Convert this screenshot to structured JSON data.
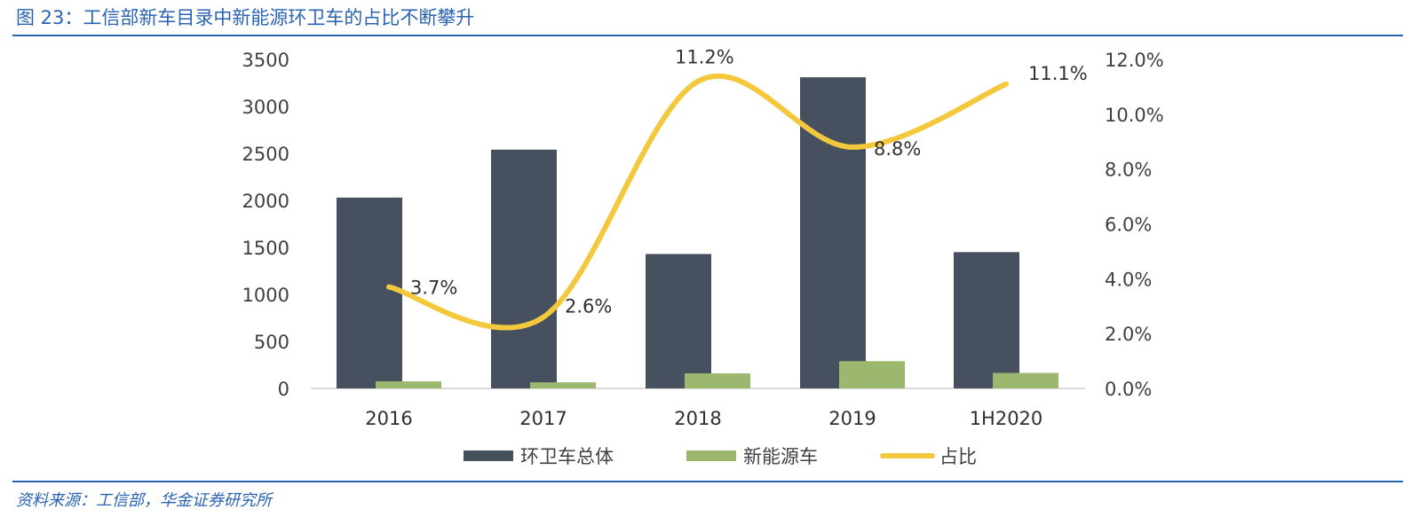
{
  "header": {
    "title": "图 23：工信部新车目录中新能源环卫车的占比不断攀升"
  },
  "footer": {
    "source": "资料来源：工信部，华金证券研究所"
  },
  "colors": {
    "total": "#46505e",
    "nev": "#9cb86f",
    "ratio": "#f3c83c",
    "accent": "#2a64b0"
  },
  "chart_data": {
    "type": "bar",
    "title": "工信部新车目录中新能源环卫车的占比不断攀升",
    "categories": [
      "2016",
      "2017",
      "2018",
      "2019",
      "1H2020"
    ],
    "series": [
      {
        "name": "环卫车总体",
        "type": "bar",
        "axis": "left",
        "values": [
          2030,
          2540,
          1430,
          3310,
          1450
        ]
      },
      {
        "name": "新能源车",
        "type": "bar",
        "axis": "left",
        "values": [
          75,
          65,
          160,
          290,
          165
        ]
      },
      {
        "name": "占比",
        "type": "line",
        "axis": "right",
        "values": [
          3.7,
          2.6,
          11.2,
          8.8,
          11.1
        ],
        "labels": [
          "3.7%",
          "2.6%",
          "11.2%",
          "8.8%",
          "11.1%"
        ]
      }
    ],
    "y_left": {
      "min": 0,
      "max": 3500,
      "ticks": [
        "0",
        "500",
        "1000",
        "1500",
        "2000",
        "2500",
        "3000",
        "3500"
      ]
    },
    "y_right": {
      "min": 0,
      "max": 12,
      "ticks": [
        "0.0%",
        "2.0%",
        "4.0%",
        "6.0%",
        "8.0%",
        "10.0%",
        "12.0%"
      ]
    },
    "legend": [
      "环卫车总体",
      "新能源车",
      "占比"
    ],
    "legend_position": "bottom"
  }
}
